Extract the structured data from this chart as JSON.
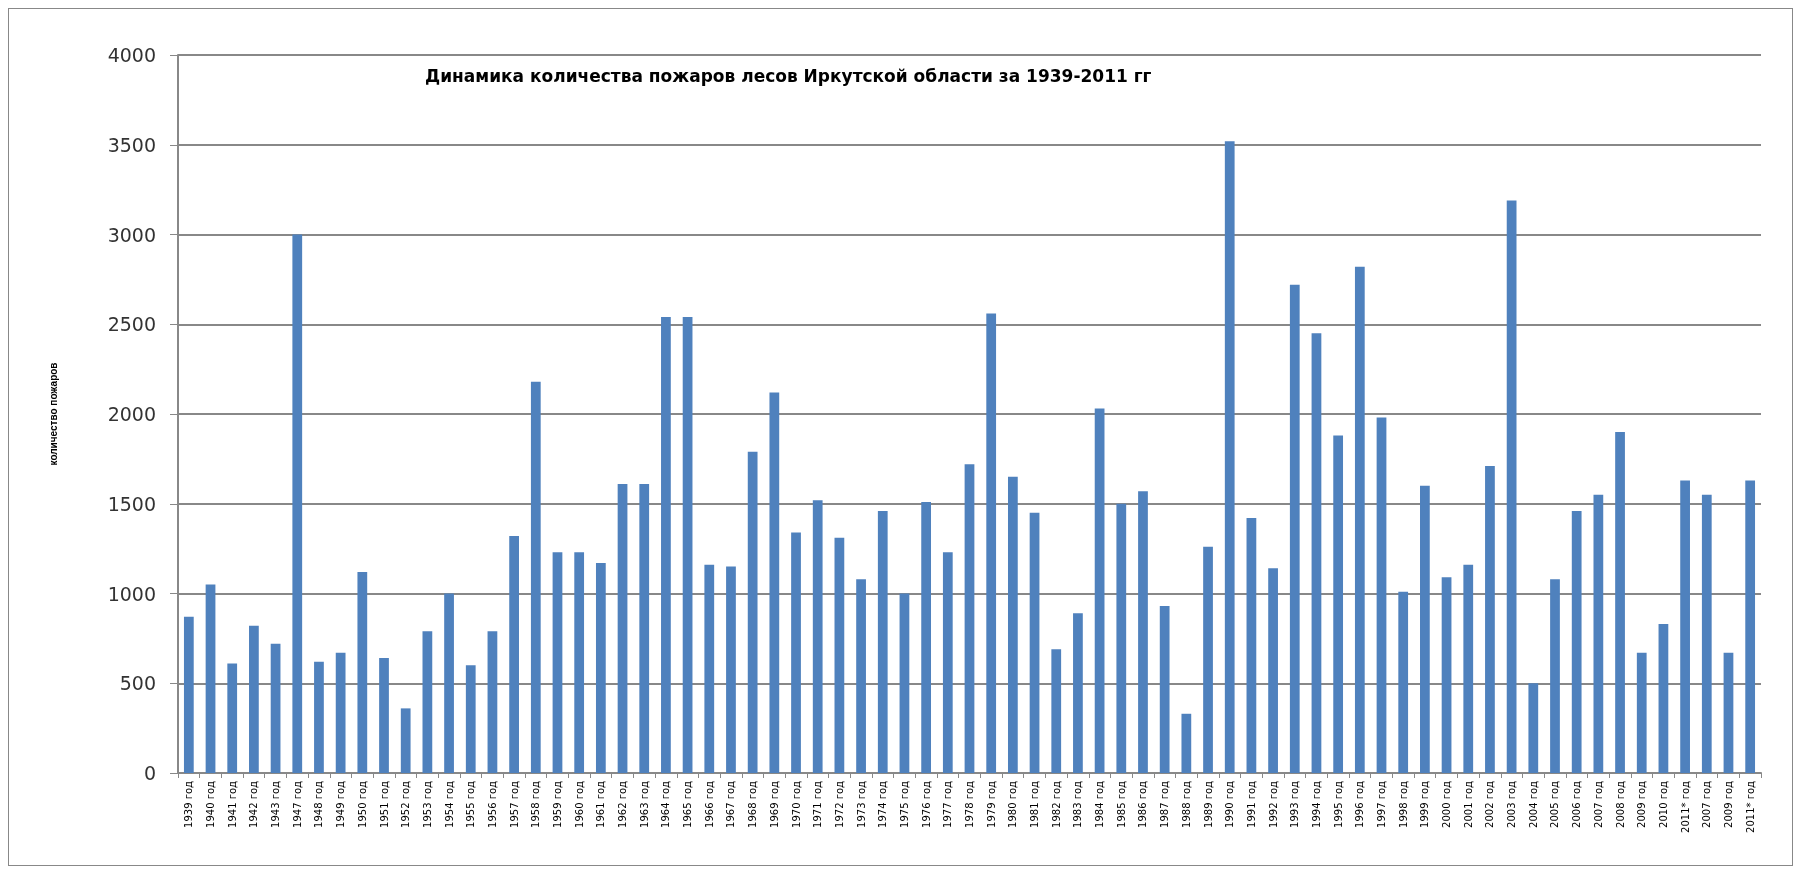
{
  "chart_data": {
    "type": "bar",
    "title": "Динамика количества пожаров лесов Иркутской области за 1939-2011 гг",
    "ylabel": "количество пожаров",
    "categories": [
      "1939 год",
      "1940 год",
      "1941 год",
      "1942 год",
      "1943 год",
      "1947 год",
      "1948 год",
      "1949 год",
      "1950 год",
      "1951 год",
      "1952 год",
      "1953 год",
      "1954 год",
      "1955 год",
      "1956 год",
      "1957 год",
      "1958 год",
      "1959 год",
      "1960 год",
      "1961 год",
      "1962 год",
      "1963 год",
      "1964 год",
      "1965 год",
      "1966 год",
      "1967 год",
      "1968 год",
      "1969 год",
      "1970 год",
      "1971 год",
      "1972 год",
      "1973 год",
      "1974 год",
      "1975 год",
      "1976 год",
      "1977 год",
      "1978 год",
      "1979 год",
      "1980 год",
      "1981 год",
      "1982 год",
      "1983 год",
      "1984 год",
      "1985 год",
      "1986 год",
      "1987 год",
      "1988 год",
      "1989 год",
      "1990 год",
      "1991 год",
      "1992 год",
      "1993 год",
      "1994 год",
      "1995 год",
      "1996 год",
      "1997 год",
      "1998 год",
      "1999 год",
      "2000 год",
      "2001 год",
      "2002 год",
      "2003 год",
      "2004 год",
      "2005 год",
      "2006 год",
      "2007 год",
      "2008 год",
      "2009 год",
      "2010 год",
      "2011* год",
      "2007 год",
      "2009 год",
      "2011* год"
    ],
    "values": [
      870,
      1050,
      610,
      820,
      720,
      3000,
      620,
      670,
      1120,
      640,
      360,
      790,
      1000,
      600,
      790,
      1320,
      2180,
      1230,
      1230,
      1170,
      1610,
      1610,
      2540,
      2540,
      1160,
      1150,
      1790,
      2120,
      1340,
      1520,
      1310,
      1080,
      1460,
      1000,
      1510,
      1230,
      1720,
      2560,
      1650,
      1450,
      690,
      890,
      2030,
      1500,
      1570,
      930,
      330,
      1260,
      3520,
      1420,
      1140,
      2720,
      2450,
      1880,
      2820,
      1980,
      1010,
      1600,
      1090,
      1160,
      1710,
      3190,
      500,
      1080,
      1460,
      1550,
      1900,
      670,
      830,
      1630,
      1550,
      670,
      1630
    ],
    "color": "#4f81bd",
    "ylim": [
      0,
      4000
    ],
    "yticks": [
      0,
      500,
      1000,
      1500,
      2000,
      2500,
      3000,
      3500,
      4000
    ],
    "grid": "y"
  }
}
